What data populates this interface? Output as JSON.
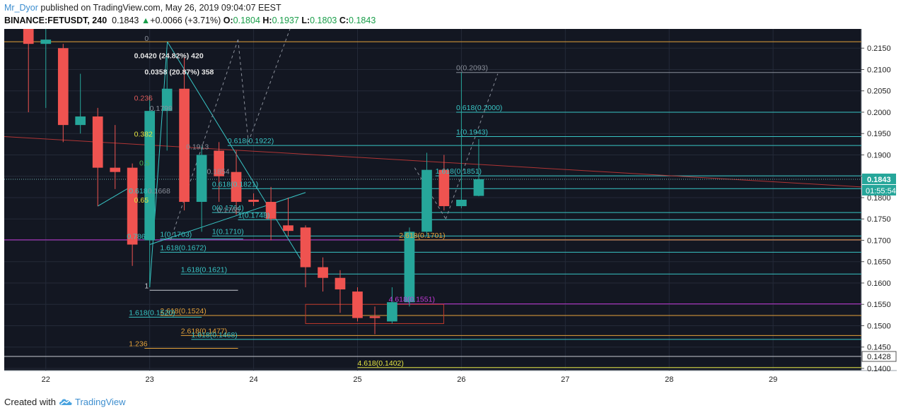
{
  "header": {
    "author": "Mr_Dyor",
    "published_text": " published on TradingView.com, May 26, 2019 09:04:07 EEST",
    "symbol": "BINANCE:FETUSDT, 240",
    "last": "0.1843",
    "change_arrow": "▲",
    "change": "+0.0066 (+3.71%)",
    "o_label": "O:",
    "o_value": "0.1804",
    "h_label": "H:",
    "h_value": "0.1937",
    "l_label": "L:",
    "l_value": "0.1803",
    "c_label": "C:",
    "c_value": "0.1843"
  },
  "footer": {
    "created_with": "Created with",
    "brand": "TradingView",
    "logo_icon": "tradingview-cloud-icon"
  },
  "colors": {
    "background": "#131722",
    "up": "#26a69a",
    "down": "#ef5350",
    "grid": "#242a38",
    "fib_cyan": "#38c5c5",
    "fib_orange": "#e5a23a",
    "fib_purple": "#c038d6",
    "fib_yellow": "#e5e542",
    "trend_red": "#b03535"
  },
  "chart_data": {
    "type": "candlestick",
    "x_tick_labels": [
      "22",
      "23",
      "24",
      "25",
      "26",
      "27",
      "28",
      "29"
    ],
    "y_ticks": [
      0.14,
      0.145,
      0.15,
      0.155,
      0.16,
      0.165,
      0.17,
      0.175,
      0.18,
      0.185,
      0.19,
      0.195,
      0.2,
      0.205,
      0.21,
      0.215
    ],
    "y_tick_labels": [
      "0.1400",
      "0.1450",
      "0.1500",
      "0.1550",
      "0.1600",
      "0.1650",
      "0.1700",
      "0.1750",
      "0.1800",
      "0.1850",
      "0.1900",
      "0.1950",
      "0.2000",
      "0.2050",
      "0.2100",
      "0.2150"
    ],
    "ylim": [
      0.1395,
      0.2195
    ],
    "xlim": [
      21.6,
      29.85
    ],
    "price_badge": {
      "value": 0.1843,
      "label": "0.1843",
      "countdown": "01:55:54"
    },
    "low_badge": {
      "value": 0.1428,
      "label": "0.1428"
    },
    "candles": [
      {
        "t": 21.833,
        "o": 0.22,
        "h": 0.223,
        "l": 0.2,
        "c": 0.216
      },
      {
        "t": 22.0,
        "o": 0.216,
        "h": 0.22,
        "l": 0.201,
        "c": 0.217
      },
      {
        "t": 22.167,
        "o": 0.215,
        "h": 0.216,
        "l": 0.193,
        "c": 0.197
      },
      {
        "t": 22.333,
        "o": 0.197,
        "h": 0.209,
        "l": 0.195,
        "c": 0.199
      },
      {
        "t": 22.5,
        "o": 0.199,
        "h": 0.201,
        "l": 0.178,
        "c": 0.187
      },
      {
        "t": 22.667,
        "o": 0.187,
        "h": 0.197,
        "l": 0.182,
        "c": 0.186
      },
      {
        "t": 22.833,
        "o": 0.187,
        "h": 0.188,
        "l": 0.164,
        "c": 0.169
      },
      {
        "t": 23.0,
        "o": 0.17,
        "h": 0.204,
        "l": 0.159,
        "c": 0.2003
      },
      {
        "t": 23.167,
        "o": 0.2003,
        "h": 0.213,
        "l": 0.191,
        "c": 0.2055
      },
      {
        "t": 23.333,
        "o": 0.2055,
        "h": 0.213,
        "l": 0.177,
        "c": 0.179
      },
      {
        "t": 23.5,
        "o": 0.179,
        "h": 0.192,
        "l": 0.172,
        "c": 0.19
      },
      {
        "t": 23.667,
        "o": 0.191,
        "h": 0.193,
        "l": 0.179,
        "c": 0.185
      },
      {
        "t": 23.833,
        "o": 0.186,
        "h": 0.191,
        "l": 0.176,
        "c": 0.179
      },
      {
        "t": 24.0,
        "o": 0.1795,
        "h": 0.181,
        "l": 0.178,
        "c": 0.179
      },
      {
        "t": 24.167,
        "o": 0.179,
        "h": 0.1825,
        "l": 0.17,
        "c": 0.175
      },
      {
        "t": 24.333,
        "o": 0.1735,
        "h": 0.18,
        "l": 0.171,
        "c": 0.1722
      },
      {
        "t": 24.5,
        "o": 0.173,
        "h": 0.1735,
        "l": 0.159,
        "c": 0.1637
      },
      {
        "t": 24.667,
        "o": 0.1637,
        "h": 0.166,
        "l": 0.158,
        "c": 0.1612
      },
      {
        "t": 24.833,
        "o": 0.1612,
        "h": 0.163,
        "l": 0.153,
        "c": 0.1585
      },
      {
        "t": 25.0,
        "o": 0.158,
        "h": 0.159,
        "l": 0.151,
        "c": 0.1518
      },
      {
        "t": 25.167,
        "o": 0.1522,
        "h": 0.1545,
        "l": 0.148,
        "c": 0.1518
      },
      {
        "t": 25.333,
        "o": 0.151,
        "h": 0.159,
        "l": 0.1505,
        "c": 0.1555
      },
      {
        "t": 25.5,
        "o": 0.1555,
        "h": 0.173,
        "l": 0.1545,
        "c": 0.172
      },
      {
        "t": 25.667,
        "o": 0.172,
        "h": 0.1905,
        "l": 0.171,
        "c": 0.1865
      },
      {
        "t": 25.833,
        "o": 0.1865,
        "h": 0.19,
        "l": 0.177,
        "c": 0.178
      },
      {
        "t": 26.0,
        "o": 0.178,
        "h": 0.2093,
        "l": 0.1775,
        "c": 0.1795
      },
      {
        "t": 26.167,
        "o": 0.1804,
        "h": 0.1937,
        "l": 0.1803,
        "c": 0.1843
      }
    ],
    "horizontal_levels": [
      {
        "value": 0.2165,
        "color": "orange",
        "x1": 21.6,
        "x2": 29.85
      },
      {
        "value": 0.2093,
        "color": "gray",
        "x1": 25.95,
        "x2": 29.85,
        "label": "0(0.2093)",
        "lx": 25.95
      },
      {
        "value": 0.2,
        "color": "cyan",
        "x1": 25.95,
        "x2": 29.85,
        "label": "0.618(0.2000)",
        "lx": 25.95
      },
      {
        "value": 0.1943,
        "color": "cyan",
        "x1": 25.95,
        "x2": 29.85,
        "label": "1(0.1943)",
        "lx": 25.95
      },
      {
        "value": 0.1922,
        "color": "cyan",
        "x1": 23.75,
        "x2": 29.85,
        "label": "0.618(0.1922)",
        "lx": 23.75
      },
      {
        "value": 0.1851,
        "color": "cyan",
        "x1": 25.75,
        "x2": 29.85,
        "label": "1.618(0.1851)",
        "lx": 25.75
      },
      {
        "value": 0.1821,
        "color": "cyan",
        "x1": 23.6,
        "x2": 29.85,
        "label": "0.618(0.1821)",
        "lx": 23.6
      },
      {
        "value": 0.1765,
        "color": "cyan",
        "x1": 23.6,
        "x2": 29.85,
        "label": "0(0.1764)",
        "lx": 23.6
      },
      {
        "value": 0.1748,
        "color": "cyan",
        "x1": 23.85,
        "x2": 29.85,
        "label": "1(0.1748)",
        "lx": 23.85
      },
      {
        "value": 0.171,
        "color": "cyan",
        "x1": 23.6,
        "x2": 29.85,
        "label": "1(0.1710)",
        "lx": 23.6
      },
      {
        "value": 0.1703,
        "color": "cyan",
        "x1": 23.1,
        "x2": 23.9,
        "label": "1(0.1703)",
        "lx": 23.1
      },
      {
        "value": 0.1701,
        "color": "purple",
        "x1": 21.6,
        "x2": 29.85
      },
      {
        "value": 0.1701,
        "color": "orange",
        "x1": 25.4,
        "x2": 29.85,
        "label": "2.618(0.1701)",
        "lx": 25.4
      },
      {
        "value": 0.1672,
        "color": "cyan",
        "x1": 23.1,
        "x2": 29.85,
        "label": "1.618(0.1672)",
        "lx": 23.1
      },
      {
        "value": 0.1621,
        "color": "cyan",
        "x1": 23.3,
        "x2": 29.85,
        "label": "1.618(0.1621)",
        "lx": 23.3
      },
      {
        "value": 0.1583,
        "color": "white",
        "x1": 23.0,
        "x2": 23.85,
        "label": "1",
        "lx": 22.95
      },
      {
        "value": 0.1551,
        "color": "purple",
        "x1": 25.3,
        "x2": 29.85,
        "label": "4.618(0.1551)",
        "lx": 25.3
      },
      {
        "value": 0.1524,
        "color": "orange",
        "x1": 23.1,
        "x2": 29.85,
        "label": "2.618(0.1524)",
        "lx": 23.1
      },
      {
        "value": 0.152,
        "color": "cyan",
        "x1": 22.8,
        "x2": 23.5,
        "label": "1.618(0.1520)",
        "lx": 22.8
      },
      {
        "value": 0.1477,
        "color": "orange",
        "x1": 23.3,
        "x2": 29.85,
        "label": "2.618(0.1477)",
        "lx": 23.3
      },
      {
        "value": 0.1468,
        "color": "cyan",
        "x1": 23.4,
        "x2": 29.85,
        "label": "1.618(0.1468)",
        "lx": 23.4
      },
      {
        "value": 0.1447,
        "color": "orange",
        "x1": 22.95,
        "x2": 23.85,
        "label": "1.236",
        "lx": 22.8
      },
      {
        "value": 0.1428,
        "color": "white",
        "x1": 21.6,
        "x2": 29.85
      },
      {
        "value": 0.1402,
        "color": "yellow",
        "x1": 25.0,
        "x2": 29.85,
        "label": "4.618(0.1402)",
        "lx": 25.0
      }
    ],
    "upper_fib_labels": [
      {
        "text": "0",
        "t": 22.95,
        "v": 0.2167,
        "color": "gray"
      },
      {
        "text": "0.236",
        "t": 22.85,
        "v": 0.2027,
        "color": "red"
      },
      {
        "text": "0.382",
        "t": 22.85,
        "v": 0.1943,
        "color": "yellow"
      },
      {
        "text": "0.5",
        "t": 22.9,
        "v": 0.1875,
        "color": "green"
      },
      {
        "text": "0.618",
        "t": 22.8,
        "v": 0.181,
        "color": "cyan"
      },
      {
        "text": "0.65",
        "t": 22.85,
        "v": 0.1788,
        "color": "yellow"
      },
      {
        "text": "0.786",
        "t": 22.78,
        "v": 0.1703,
        "color": "cyan"
      },
      {
        "text": "0.1799",
        "t": 23.0,
        "v": 0.2003,
        "color": "gray"
      },
      {
        "text": "0.1913",
        "t": 23.35,
        "v": 0.1913,
        "color": "gray"
      },
      {
        "text": "0.1854",
        "t": 23.55,
        "v": 0.1855,
        "color": "gray"
      },
      {
        "text": "0.1668",
        "t": 22.98,
        "v": 0.181,
        "color": "gray"
      },
      {
        "text": "0.1765",
        "t": 23.65,
        "v": 0.1765,
        "color": "gray"
      }
    ],
    "measures": [
      {
        "text": "0.0420 (24.82%) 420",
        "t": 22.85,
        "v": 0.2126
      },
      {
        "text": "0.0358 (20.87%) 358",
        "t": 22.95,
        "v": 0.2088
      }
    ],
    "trend_lines": [
      {
        "t1": 21.6,
        "v1": 0.1943,
        "t2": 29.85,
        "v2": 0.1825,
        "color": "red",
        "dash": false
      },
      {
        "t1": 22.5,
        "v1": 0.178,
        "t2": 22.85,
        "v2": 0.183,
        "color": "cyan",
        "dash": false
      },
      {
        "t1": 23.17,
        "v1": 0.2165,
        "t2": 24.5,
        "v2": 0.1637,
        "color": "cyan",
        "dash": false
      },
      {
        "t1": 23.0,
        "v1": 0.159,
        "t2": 23.17,
        "v2": 0.2165,
        "color": "cyan",
        "dash": false
      },
      {
        "t1": 23.0,
        "v1": 0.169,
        "t2": 24.5,
        "v2": 0.1812,
        "color": "cyan",
        "dash": false
      },
      {
        "t1": 23.2,
        "v1": 0.17,
        "t2": 23.85,
        "v2": 0.217,
        "color": "gray",
        "dash": true
      },
      {
        "t1": 23.85,
        "v1": 0.217,
        "t2": 23.95,
        "v2": 0.193,
        "color": "gray",
        "dash": true
      },
      {
        "t1": 23.95,
        "v1": 0.193,
        "t2": 24.35,
        "v2": 0.2195,
        "color": "gray",
        "dash": true
      },
      {
        "t1": 25.55,
        "v1": 0.187,
        "t2": 25.85,
        "v2": 0.175,
        "color": "gray",
        "dash": true
      },
      {
        "t1": 25.85,
        "v1": 0.175,
        "t2": 26.35,
        "v2": 0.209,
        "color": "gray",
        "dash": true
      }
    ],
    "zone_box": {
      "t1": 24.5,
      "v1": 0.155,
      "t2": 25.83,
      "v2": 0.1505,
      "color": "red"
    },
    "title": "",
    "xlabel": "",
    "ylabel": ""
  }
}
